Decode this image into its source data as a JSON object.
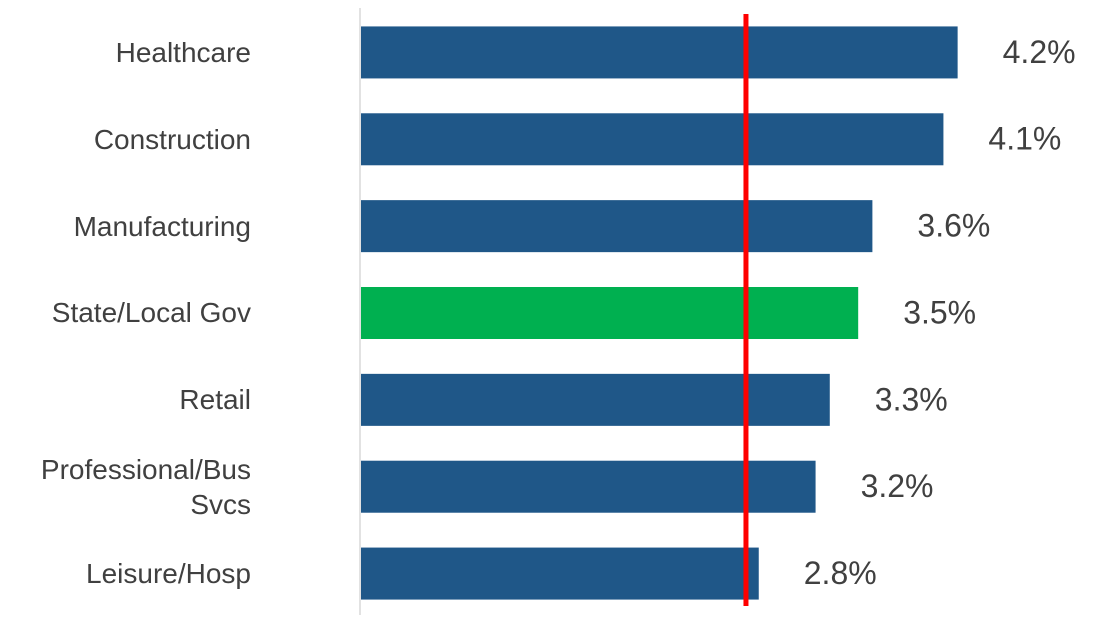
{
  "chart_data": {
    "type": "barh",
    "categories": [
      "Healthcare",
      "Construction",
      "Manufacturing",
      "State/Local Gov",
      "Retail",
      "Professional/Bus Svcs",
      "Leisure/Hosp"
    ],
    "values": [
      4.2,
      4.1,
      3.6,
      3.5,
      3.3,
      3.2,
      2.8
    ],
    "value_labels": [
      "4.2%",
      "4.1%",
      "3.6%",
      "3.5%",
      "3.3%",
      "3.2%",
      "2.8%"
    ],
    "colors": [
      "#1f5788",
      "#1f5788",
      "#1f5788",
      "#00b050",
      "#1f5788",
      "#1f5788",
      "#1f5788"
    ],
    "xlim": [
      0,
      5.16
    ],
    "reference_line": {
      "value": 2.71,
      "color": "#ff0000"
    }
  }
}
